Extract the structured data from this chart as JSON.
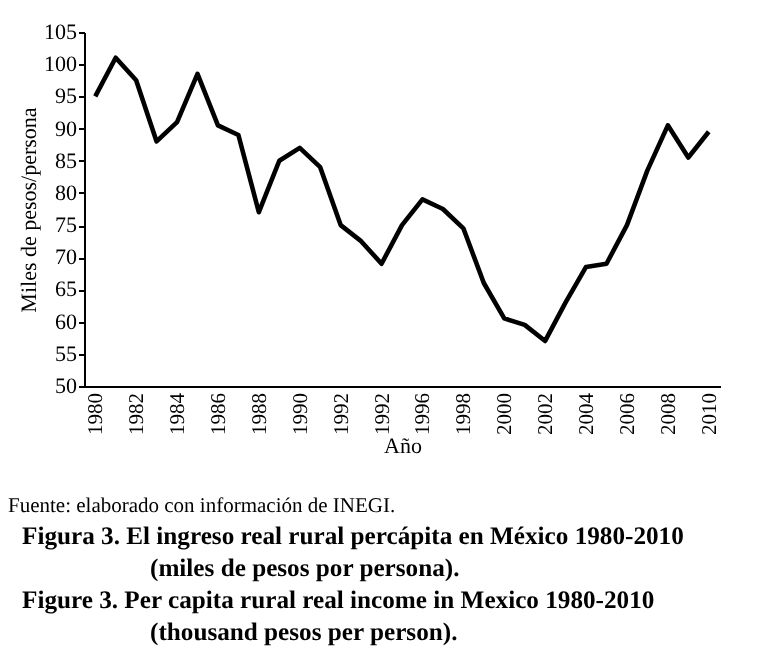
{
  "chart_data": {
    "type": "line",
    "title": "Figura 3. El ingreso real rural percápita en México 1980-2010 (miles de pesos por persona).",
    "subtitle": "Figure 3. Per capita rural real income in Mexico 1980-2010 (thousand pesos per person).",
    "xlabel": "Año",
    "ylabel": "Miles de pesos/persona",
    "annotations": [
      "Fuente: elaborado con información de INEGI."
    ],
    "categories": [
      "1980",
      null,
      "1982",
      null,
      "1984",
      null,
      "1986",
      null,
      "1988",
      null,
      "1990",
      null,
      "1992",
      null,
      "1992",
      null,
      "1996",
      null,
      "1998",
      null,
      "2000",
      null,
      "2002",
      null,
      "2004",
      null,
      "2006",
      null,
      "2008",
      null,
      "2010"
    ],
    "series": [
      {
        "color": "#000000",
        "values": [
          95,
          101,
          97.5,
          88,
          91,
          98.5,
          90.5,
          89,
          77,
          85,
          87,
          84,
          75,
          72.5,
          69,
          75,
          79,
          77.5,
          74.5,
          66,
          60.5,
          59.5,
          57,
          63,
          68.5,
          69,
          75,
          83.5,
          90.5,
          85.5,
          89.5
        ]
      }
    ],
    "ylim": [
      50,
      105
    ],
    "yticks": [
      50,
      55,
      60,
      65,
      70,
      75,
      80,
      85,
      90,
      95,
      100,
      105
    ],
    "grid": false
  }
}
